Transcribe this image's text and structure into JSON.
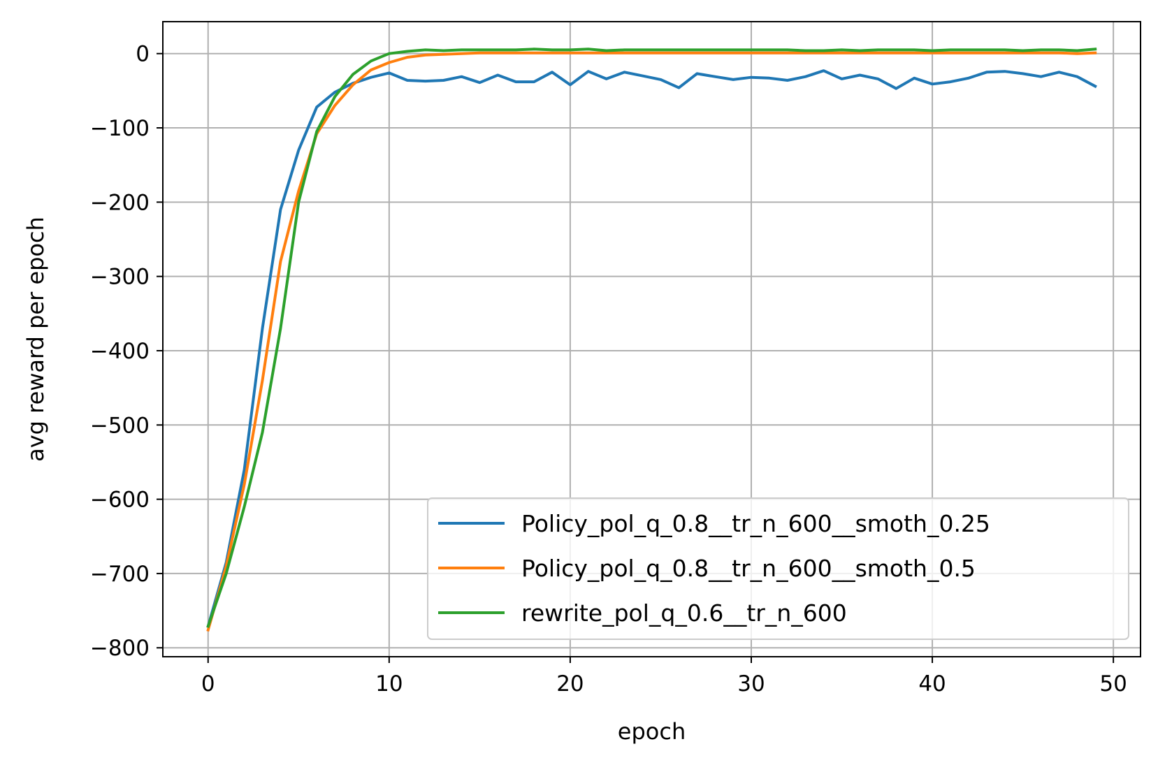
{
  "chart_data": {
    "type": "line",
    "title": "",
    "xlabel": "epoch",
    "ylabel": "avg reward per epoch",
    "xlim": [
      -2.5,
      51.5
    ],
    "ylim": [
      -812,
      43
    ],
    "xticks": [
      0,
      10,
      20,
      30,
      40,
      50
    ],
    "yticks": [
      0,
      -100,
      -200,
      -300,
      -400,
      -500,
      -600,
      -700,
      -800
    ],
    "ytick_labels": [
      "0",
      "−100",
      "−200",
      "−300",
      "−400",
      "−500",
      "−600",
      "−700",
      "−800"
    ],
    "grid": true,
    "legend_position": "lower right",
    "series": [
      {
        "name": "Policy_pol_q_0.8__tr_n_600__smoth_0.25",
        "color": "#1f77b4",
        "x": [
          0,
          1,
          2,
          3,
          4,
          5,
          6,
          7,
          8,
          9,
          10,
          11,
          12,
          13,
          14,
          15,
          16,
          17,
          18,
          19,
          20,
          21,
          22,
          23,
          24,
          25,
          26,
          27,
          28,
          29,
          30,
          31,
          32,
          33,
          34,
          35,
          36,
          37,
          38,
          39,
          40,
          41,
          42,
          43,
          44,
          45,
          46,
          47,
          48,
          49
        ],
        "values": [
          -771,
          -685,
          -560,
          -370,
          -210,
          -130,
          -72,
          -52,
          -40,
          -32,
          -26,
          -36,
          -37,
          -36,
          -31,
          -39,
          -29,
          -38,
          -38,
          -25,
          -42,
          -24,
          -34,
          -25,
          -30,
          -35,
          -46,
          -27,
          -31,
          -35,
          -32,
          -33,
          -36,
          -31,
          -23,
          -34,
          -29,
          -34,
          -47,
          -33,
          -41,
          -38,
          -33,
          -25,
          -24,
          -27,
          -31,
          -25,
          -31,
          -44
        ]
      },
      {
        "name": "Policy_pol_q_0.8__tr_n_600__smoth_0.5",
        "color": "#ff7f0e",
        "x": [
          0,
          1,
          2,
          3,
          4,
          5,
          6,
          7,
          8,
          9,
          10,
          11,
          12,
          13,
          14,
          15,
          16,
          17,
          18,
          19,
          20,
          21,
          22,
          23,
          24,
          25,
          26,
          27,
          28,
          29,
          30,
          31,
          32,
          33,
          34,
          35,
          36,
          37,
          38,
          39,
          40,
          41,
          42,
          43,
          44,
          45,
          46,
          47,
          48,
          49
        ],
        "values": [
          -776,
          -690,
          -580,
          -440,
          -280,
          -185,
          -108,
          -70,
          -42,
          -22,
          -12,
          -5,
          -2,
          -1,
          0,
          1,
          1,
          1,
          1,
          1,
          1,
          1,
          1,
          1,
          1,
          1,
          1,
          1,
          1,
          1,
          1,
          1,
          1,
          1,
          1,
          1,
          1,
          1,
          1,
          1,
          1,
          1,
          1,
          1,
          1,
          1,
          1,
          1,
          0,
          1
        ]
      },
      {
        "name": "rewrite_pol_q_0.6__tr_n_600",
        "color": "#2ca02c",
        "x": [
          0,
          1,
          2,
          3,
          4,
          5,
          6,
          7,
          8,
          9,
          10,
          11,
          12,
          13,
          14,
          15,
          16,
          17,
          18,
          19,
          20,
          21,
          22,
          23,
          24,
          25,
          26,
          27,
          28,
          29,
          30,
          31,
          32,
          33,
          34,
          35,
          36,
          37,
          38,
          39,
          40,
          41,
          42,
          43,
          44,
          45,
          46,
          47,
          48,
          49
        ],
        "values": [
          -771,
          -700,
          -610,
          -510,
          -370,
          -200,
          -105,
          -58,
          -28,
          -10,
          0,
          3,
          5,
          4,
          5,
          5,
          5,
          5,
          6,
          5,
          5,
          6,
          4,
          5,
          5,
          5,
          5,
          5,
          5,
          5,
          5,
          5,
          5,
          4,
          4,
          5,
          4,
          5,
          5,
          5,
          4,
          5,
          5,
          5,
          5,
          4,
          5,
          5,
          4,
          6
        ]
      }
    ]
  }
}
